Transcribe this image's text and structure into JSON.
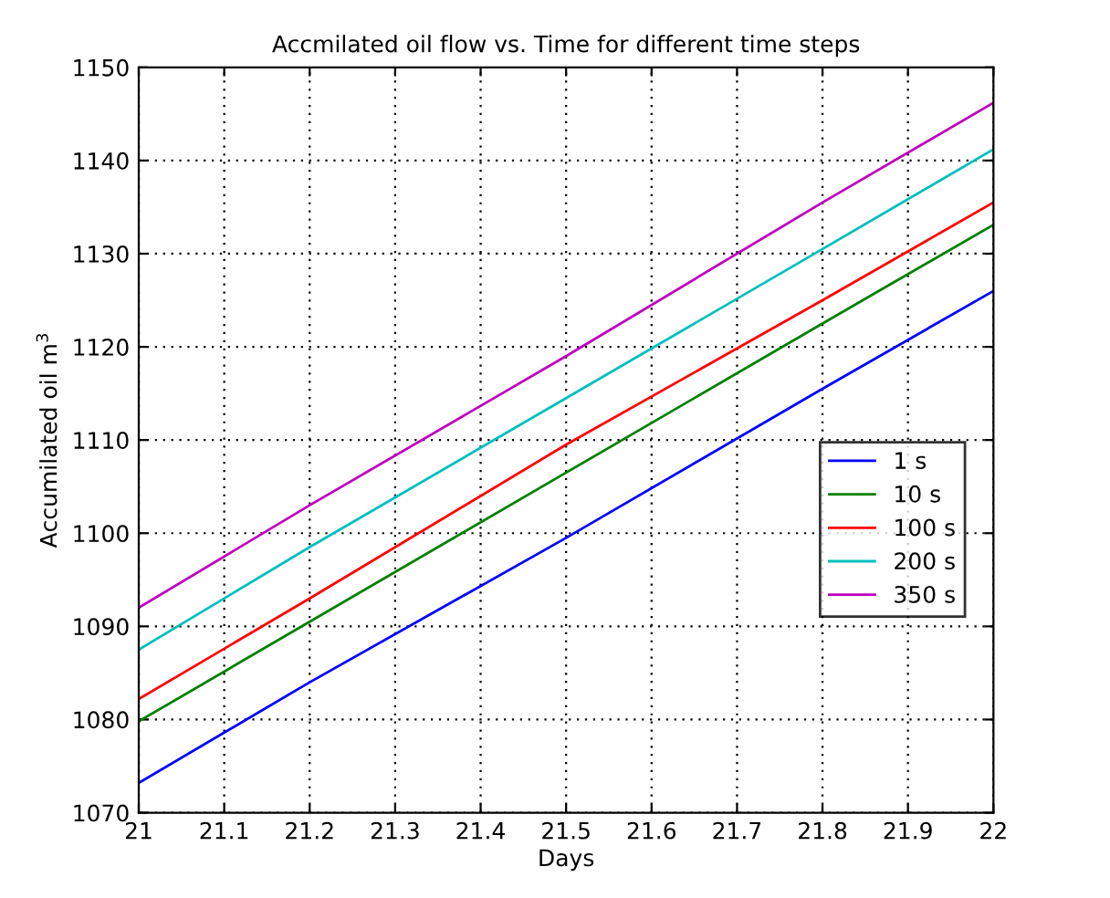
{
  "chart_data": {
    "type": "line",
    "title": "Accmilated oil flow vs. Time for different time steps",
    "xlabel": "Days",
    "ylabel": "Accumilated oil m$^{3}$",
    "x": [
      21,
      21.2,
      21.5,
      21.8,
      22
    ],
    "series": [
      {
        "name": "1 s",
        "color": "#0000ff",
        "values": [
          1073.2,
          1084,
          1099.5,
          1115.5,
          1126
        ]
      },
      {
        "name": "10 s",
        "color": "#008000",
        "values": [
          1079.8,
          1090.5,
          1106.5,
          1122.5,
          1133.1
        ]
      },
      {
        "name": "100 s",
        "color": "#ff0000",
        "values": [
          1082.2,
          1093,
          1109.5,
          1125,
          1135.5
        ]
      },
      {
        "name": "200 s",
        "color": "#00bfbf",
        "values": [
          1087.5,
          1098.5,
          1114.5,
          1130.5,
          1141.2
        ]
      },
      {
        "name": "350 s",
        "color": "#bf00bf",
        "values": [
          1092,
          1103,
          1119,
          1135.5,
          1146.2
        ]
      }
    ],
    "xlim": [
      21,
      22
    ],
    "xticks": [
      21,
      21.1,
      21.2,
      21.3,
      21.4,
      21.5,
      21.6,
      21.7,
      21.8,
      21.9,
      22
    ],
    "ylim": [
      1070,
      1150
    ],
    "yticks": [
      1070,
      1080,
      1090,
      1100,
      1110,
      1120,
      1130,
      1140,
      1150
    ],
    "grid": true,
    "legend": "right",
    "marker": "none",
    "line_style": "solid"
  }
}
